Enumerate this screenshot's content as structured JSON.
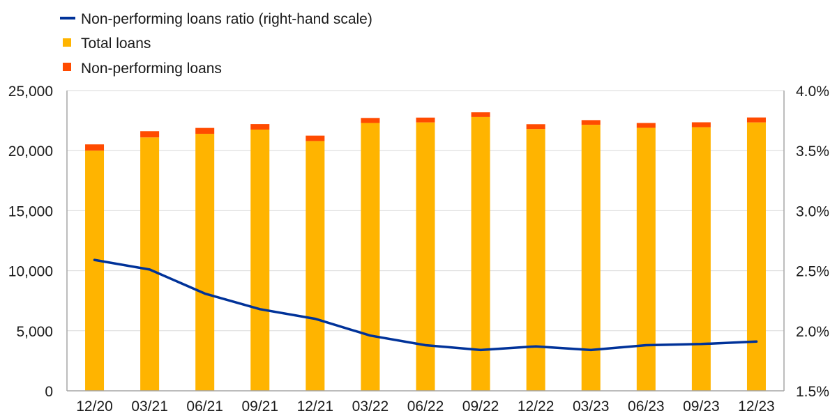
{
  "chart_data": {
    "type": "bar",
    "title": "",
    "xlabel": "",
    "ylabel": "",
    "categories": [
      "12/20",
      "03/21",
      "06/21",
      "09/21",
      "12/21",
      "03/22",
      "06/22",
      "09/22",
      "12/22",
      "03/23",
      "06/23",
      "09/23",
      "12/23"
    ],
    "stacked": true,
    "series": [
      {
        "name": "Total loans",
        "kind": "bar",
        "axis": "left",
        "color": "#FFB400",
        "values": [
          20000,
          21100,
          21400,
          21750,
          20800,
          22300,
          22350,
          22800,
          21800,
          22150,
          21900,
          21950,
          22350
        ]
      },
      {
        "name": "Non-performing loans",
        "kind": "bar",
        "axis": "left",
        "color": "#FF4B00",
        "values": [
          520,
          520,
          490,
          460,
          450,
          420,
          400,
          390,
          400,
          390,
          400,
          410,
          410
        ]
      },
      {
        "name": "Non-performing loans ratio (right-hand scale)",
        "kind": "line",
        "axis": "right",
        "color": "#003299",
        "values": [
          2.59,
          2.51,
          2.31,
          2.18,
          2.1,
          1.96,
          1.88,
          1.84,
          1.87,
          1.84,
          1.88,
          1.89,
          1.91
        ]
      }
    ],
    "ylim": [
      0,
      25000
    ],
    "yticks": [
      "0",
      "5,000",
      "10,000",
      "15,000",
      "20,000",
      "25,000"
    ],
    "y2lim": [
      1.5,
      4.0
    ],
    "y2ticks": [
      "1.5%",
      "2.0%",
      "2.5%",
      "3.0%",
      "3.5%",
      "4.0%"
    ],
    "grid": true,
    "legend_position": "top-left",
    "legend": [
      "Non-performing loans ratio (right-hand scale)",
      "Total loans",
      "Non-performing loans"
    ]
  }
}
